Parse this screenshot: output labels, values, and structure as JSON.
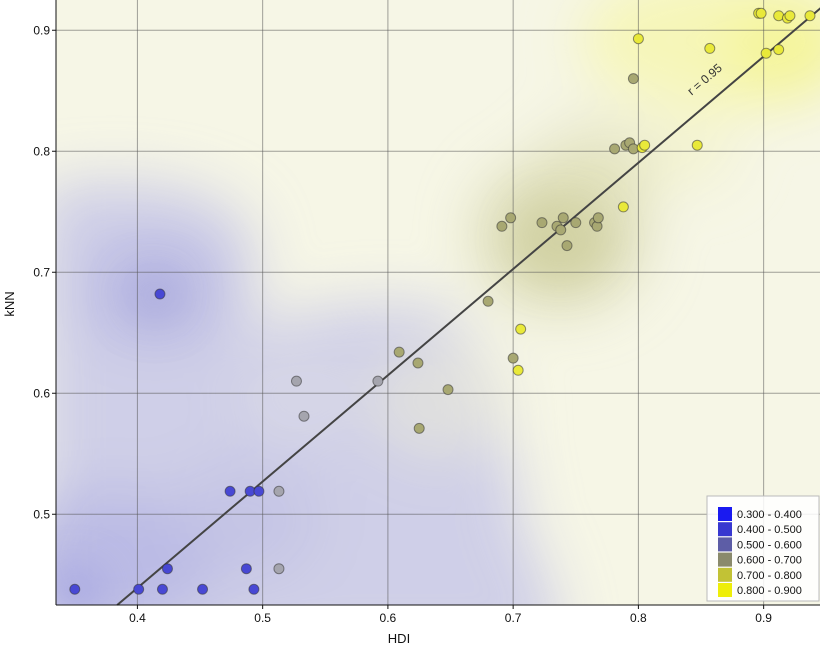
{
  "chart_data": {
    "type": "scatter",
    "xlabel": "HDI",
    "ylabel": "kNN",
    "xlim": [
      0.335,
      0.945
    ],
    "ylim": [
      0.425,
      0.925
    ],
    "x_ticks": [
      0.4,
      0.5,
      0.6,
      0.7,
      0.8,
      0.9
    ],
    "x_tick_labels": [
      "0.4",
      "0.5",
      "0.6",
      "0.7",
      "0.8",
      "0.9"
    ],
    "y_ticks": [
      0.5,
      0.6,
      0.7,
      0.8,
      0.9
    ],
    "y_tick_labels": [
      "0.5",
      "0.6",
      "0.7",
      "0.8",
      "0.9"
    ],
    "grid": true,
    "background": "kernel-smoothed color field of kNN values",
    "fit_line": {
      "slope": 0.8784,
      "intercept": 0.0878,
      "label": "r = 0.95",
      "color": "#444444"
    },
    "legend": {
      "placement": "bottom-right",
      "entries": [
        {
          "label": "0.300 - 0.400",
          "color": "#1a1af0"
        },
        {
          "label": "0.400 - 0.500",
          "color": "#3838d0"
        },
        {
          "label": "0.500 - 0.600",
          "color": "#5d5da6"
        },
        {
          "label": "0.600 - 0.700",
          "color": "#8a8a6c"
        },
        {
          "label": "0.700 - 0.800",
          "color": "#c2c235"
        },
        {
          "label": "0.800 - 0.900",
          "color": "#eeee08"
        }
      ]
    },
    "colors": {
      "blue": "#4848d4",
      "grey": "#a5a5ae",
      "olive": "#a8a872",
      "yellow": "#e9e93a"
    },
    "points": [
      {
        "x": 0.35,
        "y": 0.438,
        "c": "blue"
      },
      {
        "x": 0.401,
        "y": 0.438,
        "c": "blue"
      },
      {
        "x": 0.418,
        "y": 0.682,
        "c": "blue"
      },
      {
        "x": 0.42,
        "y": 0.438,
        "c": "blue"
      },
      {
        "x": 0.424,
        "y": 0.455,
        "c": "blue"
      },
      {
        "x": 0.452,
        "y": 0.438,
        "c": "blue"
      },
      {
        "x": 0.474,
        "y": 0.519,
        "c": "blue"
      },
      {
        "x": 0.487,
        "y": 0.455,
        "c": "blue"
      },
      {
        "x": 0.49,
        "y": 0.519,
        "c": "blue"
      },
      {
        "x": 0.493,
        "y": 0.438,
        "c": "blue"
      },
      {
        "x": 0.497,
        "y": 0.519,
        "c": "blue"
      },
      {
        "x": 0.513,
        "y": 0.519,
        "c": "grey"
      },
      {
        "x": 0.513,
        "y": 0.455,
        "c": "grey"
      },
      {
        "x": 0.527,
        "y": 0.61,
        "c": "grey"
      },
      {
        "x": 0.533,
        "y": 0.581,
        "c": "grey"
      },
      {
        "x": 0.592,
        "y": 0.61,
        "c": "grey"
      },
      {
        "x": 0.609,
        "y": 0.634,
        "c": "olive"
      },
      {
        "x": 0.624,
        "y": 0.625,
        "c": "olive"
      },
      {
        "x": 0.625,
        "y": 0.571,
        "c": "olive"
      },
      {
        "x": 0.648,
        "y": 0.603,
        "c": "olive"
      },
      {
        "x": 0.68,
        "y": 0.676,
        "c": "olive"
      },
      {
        "x": 0.691,
        "y": 0.738,
        "c": "olive"
      },
      {
        "x": 0.698,
        "y": 0.745,
        "c": "olive"
      },
      {
        "x": 0.7,
        "y": 0.629,
        "c": "olive"
      },
      {
        "x": 0.704,
        "y": 0.619,
        "c": "yellow"
      },
      {
        "x": 0.706,
        "y": 0.653,
        "c": "yellow"
      },
      {
        "x": 0.723,
        "y": 0.741,
        "c": "olive"
      },
      {
        "x": 0.735,
        "y": 0.738,
        "c": "olive"
      },
      {
        "x": 0.738,
        "y": 0.735,
        "c": "olive"
      },
      {
        "x": 0.74,
        "y": 0.745,
        "c": "olive"
      },
      {
        "x": 0.743,
        "y": 0.722,
        "c": "olive"
      },
      {
        "x": 0.75,
        "y": 0.741,
        "c": "olive"
      },
      {
        "x": 0.765,
        "y": 0.741,
        "c": "olive"
      },
      {
        "x": 0.767,
        "y": 0.738,
        "c": "olive"
      },
      {
        "x": 0.768,
        "y": 0.745,
        "c": "olive"
      },
      {
        "x": 0.781,
        "y": 0.802,
        "c": "olive"
      },
      {
        "x": 0.788,
        "y": 0.754,
        "c": "yellow"
      },
      {
        "x": 0.79,
        "y": 0.805,
        "c": "olive"
      },
      {
        "x": 0.793,
        "y": 0.807,
        "c": "olive"
      },
      {
        "x": 0.796,
        "y": 0.802,
        "c": "olive"
      },
      {
        "x": 0.796,
        "y": 0.86,
        "c": "olive"
      },
      {
        "x": 0.8,
        "y": 0.893,
        "c": "yellow"
      },
      {
        "x": 0.803,
        "y": 0.803,
        "c": "yellow"
      },
      {
        "x": 0.805,
        "y": 0.805,
        "c": "yellow"
      },
      {
        "x": 0.847,
        "y": 0.805,
        "c": "yellow"
      },
      {
        "x": 0.857,
        "y": 0.885,
        "c": "yellow"
      },
      {
        "x": 0.896,
        "y": 0.914,
        "c": "yellow"
      },
      {
        "x": 0.898,
        "y": 0.914,
        "c": "yellow"
      },
      {
        "x": 0.902,
        "y": 0.881,
        "c": "yellow"
      },
      {
        "x": 0.912,
        "y": 0.912,
        "c": "yellow"
      },
      {
        "x": 0.912,
        "y": 0.884,
        "c": "yellow"
      },
      {
        "x": 0.919,
        "y": 0.91,
        "c": "yellow"
      },
      {
        "x": 0.921,
        "y": 0.912,
        "c": "yellow"
      },
      {
        "x": 0.937,
        "y": 0.912,
        "c": "yellow"
      }
    ]
  }
}
